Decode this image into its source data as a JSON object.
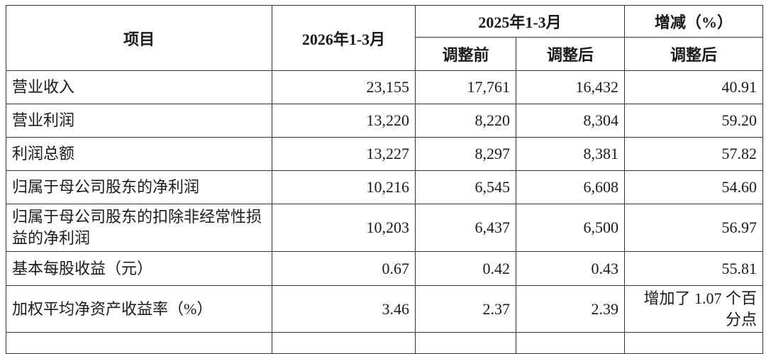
{
  "header": {
    "item": "项目",
    "current_period": "2026年1-3月",
    "prior_period": "2025年1-3月",
    "change": "增减（%）",
    "before_adjust": "调整前",
    "after_adjust": "调整后",
    "change_sub": "调整后"
  },
  "rows": [
    {
      "label": "营业收入",
      "current": "23,155",
      "before": "17,761",
      "after": "16,432",
      "change": "40.91"
    },
    {
      "label": "营业利润",
      "current": "13,220",
      "before": "8,220",
      "after": "8,304",
      "change": "59.20"
    },
    {
      "label": "利润总额",
      "current": "13,227",
      "before": "8,297",
      "after": "8,381",
      "change": "57.82"
    },
    {
      "label": "归属于母公司股东的净利润",
      "current": "10,216",
      "before": "6,545",
      "after": "6,608",
      "change": "54.60"
    },
    {
      "label": "归属于母公司股东的扣除非经常性损益的净利润",
      "current": "10,203",
      "before": "6,437",
      "after": "6,500",
      "change": "56.97"
    },
    {
      "label": "基本每股收益（元）",
      "current": "0.67",
      "before": "0.42",
      "after": "0.43",
      "change": "55.81"
    },
    {
      "label": "加权平均净资产收益率（%）",
      "current": "3.46",
      "before": "2.37",
      "after": "2.39",
      "change": "增加了 1.07 个百分点"
    }
  ]
}
